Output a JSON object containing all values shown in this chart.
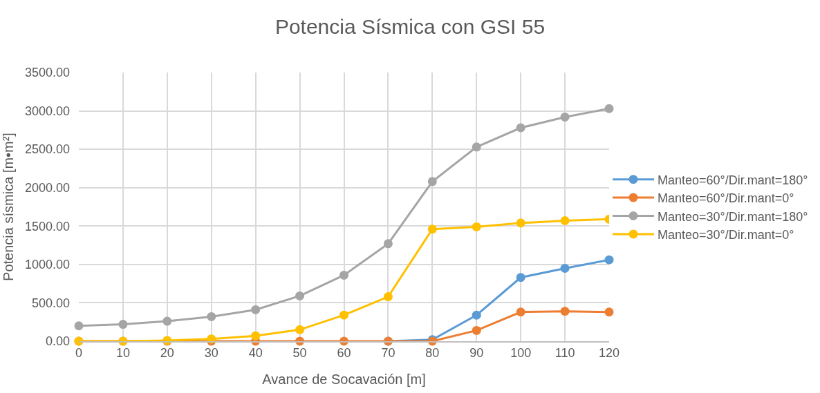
{
  "chart_data": {
    "type": "line",
    "title": "Potencia Sísmica con GSI 55",
    "xlabel": "Avance de Socavación [m]",
    "ylabel": "Potencia sísmica [m•m²]",
    "categories": [
      "0",
      "10",
      "20",
      "30",
      "40",
      "50",
      "60",
      "70",
      "80",
      "90",
      "100",
      "110",
      "120"
    ],
    "series": [
      {
        "name": "Manteo=60°/Dir.mant=180°",
        "color": "#5b9bd5",
        "values": [
          null,
          null,
          null,
          null,
          null,
          null,
          null,
          0,
          20,
          340,
          830,
          950,
          1060
        ]
      },
      {
        "name": "Manteo=60°/Dir.mant=0°",
        "color": "#ed7d31",
        "values": [
          0,
          0,
          0,
          0,
          0,
          0,
          0,
          0,
          0,
          140,
          380,
          390,
          380
        ]
      },
      {
        "name": "Manteo=30°/Dir.mant=180°",
        "color": "#a5a5a5",
        "values": [
          200,
          220,
          260,
          320,
          410,
          590,
          860,
          1270,
          2080,
          2530,
          2780,
          2920,
          3030
        ]
      },
      {
        "name": "Manteo=30°/Dir.mant=0°",
        "color": "#ffc000",
        "values": [
          0,
          0,
          10,
          30,
          70,
          150,
          340,
          580,
          1460,
          1490,
          1540,
          1570,
          1590
        ]
      }
    ],
    "ylim": [
      0,
      3500
    ],
    "yticks": [
      {
        "value": 0,
        "label": "0.00"
      },
      {
        "value": 500,
        "label": "500.00"
      },
      {
        "value": 1000,
        "label": "1000.00"
      },
      {
        "value": 1500,
        "label": "1500.00"
      },
      {
        "value": 2000,
        "label": "2000.00"
      },
      {
        "value": 2500,
        "label": "2500.00"
      },
      {
        "value": 3000,
        "label": "3000.00"
      },
      {
        "value": 3500,
        "label": "3500.00"
      }
    ],
    "grid": true,
    "legend": "right",
    "marker": "circle",
    "line_style": "solid"
  }
}
